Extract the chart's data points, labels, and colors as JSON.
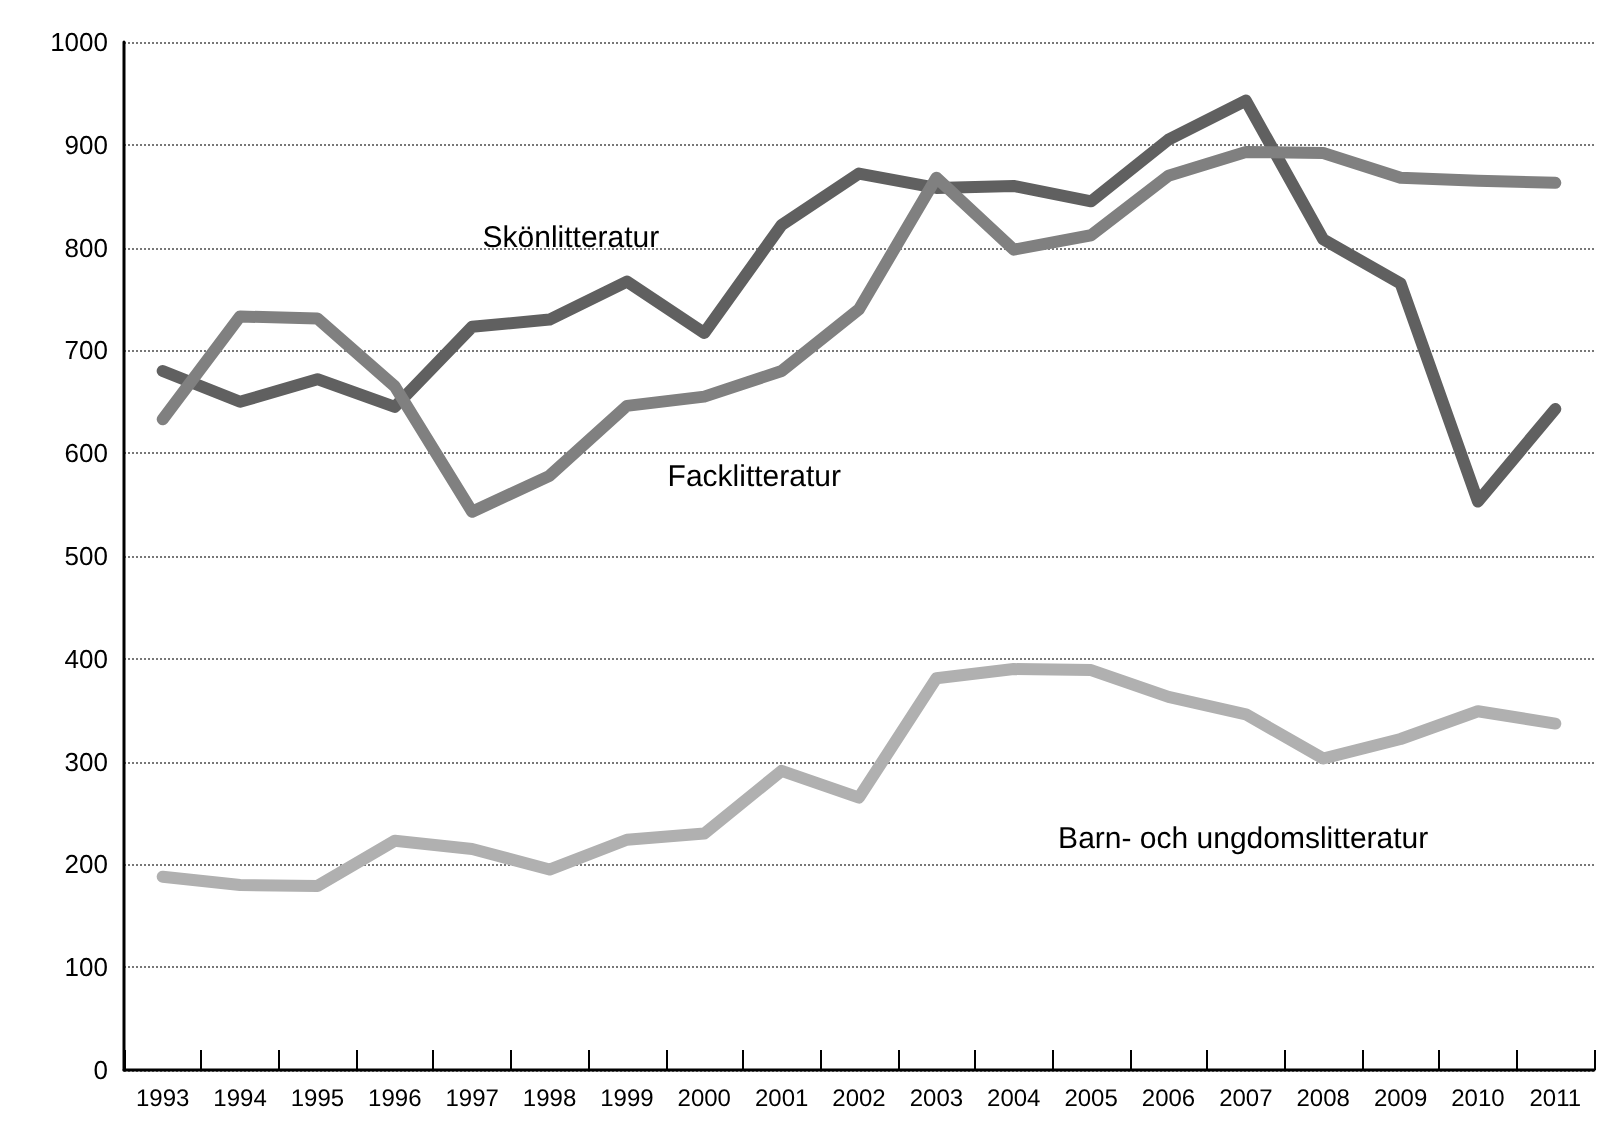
{
  "chart_data": {
    "type": "line",
    "categories": [
      "1993",
      "1994",
      "1995",
      "1996",
      "1997",
      "1998",
      "1999",
      "2000",
      "2001",
      "2002",
      "2003",
      "2004",
      "2005",
      "2006",
      "2007",
      "2008",
      "2009",
      "2010",
      "2011"
    ],
    "series": [
      {
        "name": "Skönlitteratur",
        "color": "#606060",
        "values": [
          680,
          650,
          672,
          645,
          723,
          730,
          767,
          717,
          822,
          872,
          858,
          860,
          845,
          905,
          943,
          808,
          765,
          553,
          643
        ]
      },
      {
        "name": "Facklitteratur",
        "color": "#808080",
        "values": [
          633,
          733,
          731,
          665,
          543,
          578,
          646,
          655,
          680,
          740,
          868,
          798,
          812,
          870,
          893,
          892,
          868,
          865,
          863
        ]
      },
      {
        "name": "Barn- och ungdomslitteratur",
        "color": "#b0b0b0",
        "values": [
          188,
          180,
          179,
          223,
          215,
          195,
          224,
          230,
          291,
          265,
          381,
          390,
          389,
          363,
          346,
          303,
          322,
          349,
          337
        ]
      }
    ],
    "ylim": [
      0,
      1000
    ],
    "yticks": [
      0,
      100,
      200,
      300,
      400,
      500,
      600,
      700,
      800,
      900,
      1000
    ],
    "grid": "y",
    "legend": false,
    "marker": "none",
    "line_style": "solid"
  }
}
